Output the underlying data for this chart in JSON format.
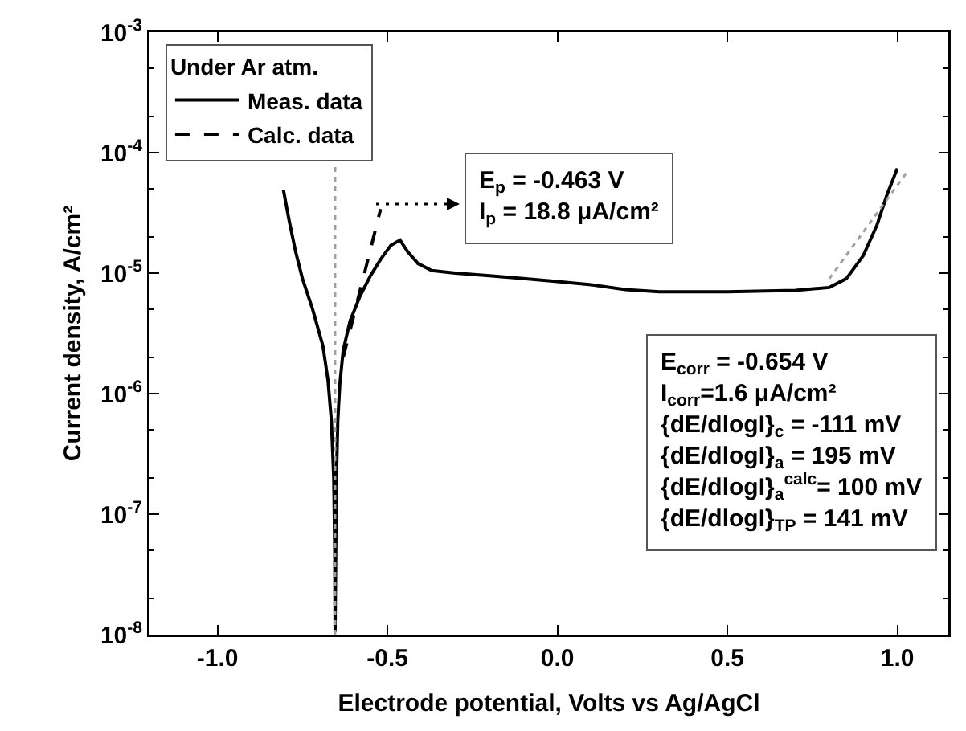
{
  "chart_data": {
    "type": "line",
    "xlabel": "Electrode potential, Volts vs Ag/AgCl",
    "ylabel": "Current density, A/cm²",
    "legend_title": "Under Ar atm.",
    "legend": "top left",
    "log": "y",
    "grid": false,
    "marker": "none",
    "xlim": [
      -1.2,
      1.15
    ],
    "xticks": [
      {
        "value": -1,
        "label": "-1.0"
      },
      {
        "value": -0.5,
        "label": "-0.5"
      },
      {
        "value": 0,
        "label": "0.0"
      },
      {
        "value": 0.5,
        "label": "0.5"
      },
      {
        "value": 1,
        "label": "1.0"
      }
    ],
    "ylim": [
      1e-08,
      0.001
    ],
    "yticks": [
      {
        "value": 1e-08,
        "label": "10$^{-8}$"
      },
      {
        "value": 1e-07,
        "label": "10$^{-7}$"
      },
      {
        "value": 1e-06,
        "label": "10$^{-6}$"
      },
      {
        "value": 1e-05,
        "label": "10$^{-5}$"
      },
      {
        "value": 0.0001,
        "label": "10$^{-4}$"
      },
      {
        "value": 0.001,
        "label": "10$^{-3}$"
      }
    ],
    "series": [
      {
        "name": "Meas. data",
        "color": "#000000",
        "line_style": "solid",
        "x": [
          -0.806,
          -0.79,
          -0.77,
          -0.75,
          -0.72,
          -0.69,
          -0.675,
          -0.665,
          -0.658,
          -0.655,
          -0.654,
          -0.652,
          -0.65,
          -0.646,
          -0.64,
          -0.63,
          -0.61,
          -0.58,
          -0.55,
          -0.52,
          -0.49,
          -0.463,
          -0.44,
          -0.41,
          -0.37,
          -0.3,
          -0.2,
          -0.1,
          0,
          0.1,
          0.2,
          0.3,
          0.5,
          0.7,
          0.8,
          0.85,
          0.9,
          0.94,
          0.97,
          1.0
        ],
        "values": [
          4.9e-05,
          2.8e-05,
          1.5e-05,
          9e-06,
          5e-06,
          2.5e-06,
          1.3e-06,
          6e-07,
          2e-07,
          5e-08,
          1.05e-08,
          5e-08,
          2e-07,
          6e-07,
          1.2e-06,
          2.3e-06,
          4e-06,
          6.5e-06,
          9.5e-06,
          1.3e-05,
          1.7e-05,
          1.88e-05,
          1.5e-05,
          1.2e-05,
          1.05e-05,
          1e-05,
          9.5e-06,
          9e-06,
          8.5e-06,
          8e-06,
          7.3e-06,
          7e-06,
          7e-06,
          7.2e-06,
          7.6e-06,
          9e-06,
          1.4e-05,
          2.5e-05,
          4.5e-05,
          7.4e-05
        ]
      },
      {
        "name": "Calc. data",
        "color": "#000000",
        "line_style": "dashed",
        "x": [
          -0.63,
          -0.52
        ],
        "values": [
          2e-06,
          3.4e-05
        ]
      },
      {
        "color": "#a0a0a0",
        "line_style": "dotted",
        "x": [
          0.8,
          1.03
        ],
        "values": [
          9e-06,
          7e-05
        ]
      }
    ],
    "ref_lines": [
      {
        "axis": "x",
        "value": -0.654,
        "color": "#a0a0a0",
        "line_style": "dotted"
      }
    ],
    "annotations": [
      "E$_{p}$ = -0.463 V\nI$_{p}$ = 18.8 μA/cm²",
      "E$_{corr}$ = -0.654 V\nI$_{corr}$=1.6 μA/cm²\n{dE/dlogI}$_{c}$ = -111 mV\n{dE/dlogI}$_{a}$ = 195 mV\n{dE/dlogI}$_{a}$$^{calc}$= 100 mV\n{dE/dlogI}$_{TP}$ = 141 mV"
    ]
  }
}
